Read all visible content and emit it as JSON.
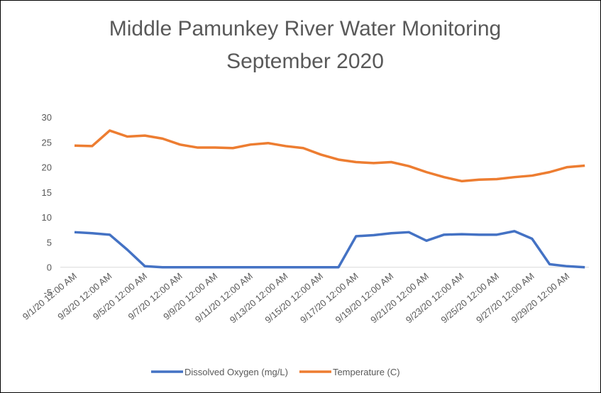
{
  "chart_data": {
    "type": "line",
    "title": [
      "Middle Pamunkey River Water Monitoring",
      "September 2020"
    ],
    "categories": [
      "9/1/20 12:00 AM",
      null,
      "9/3/20 12:00 AM",
      null,
      "9/5/20 12:00 AM",
      null,
      "9/7/20 12:00 AM",
      null,
      "9/9/20 12:00 AM",
      null,
      "9/11/20 12:00 AM",
      null,
      "9/13/20 12:00 AM",
      null,
      "9/15/20 12:00 AM",
      null,
      "9/17/20 12:00 AM",
      null,
      "9/19/20 12:00 AM",
      null,
      "9/21/20 12:00 AM",
      null,
      "9/23/20 12:00 AM",
      null,
      "9/25/20 12:00 AM",
      null,
      "9/27/20 12:00 AM",
      null,
      "9/29/20 12:00 AM",
      null
    ],
    "series": [
      {
        "name": "Dissolved Oxygen (mg/L)",
        "color": "#4472c4",
        "values": [
          7.0,
          6.8,
          6.5,
          3.5,
          0.2,
          0,
          0,
          0,
          0,
          0,
          0,
          0,
          0,
          0,
          0,
          0,
          6.2,
          6.4,
          6.8,
          7.0,
          5.3,
          6.5,
          6.6,
          6.5,
          6.5,
          7.2,
          5.7,
          0.6,
          0.2,
          0
        ]
      },
      {
        "name": "Temperature (C)",
        "color": "#ed7d31",
        "values": [
          24.3,
          24.2,
          27.3,
          26.1,
          26.3,
          25.7,
          24.5,
          23.9,
          23.9,
          23.8,
          24.5,
          24.8,
          24.2,
          23.8,
          22.5,
          21.5,
          21.0,
          20.8,
          21.0,
          20.2,
          19.0,
          18.0,
          17.2,
          17.5,
          17.6,
          18.0,
          18.3,
          19.0,
          20.0,
          20.3
        ]
      }
    ],
    "ylim": [
      -5,
      30
    ],
    "yticks": [
      -5,
      0,
      5,
      10,
      15,
      20,
      25,
      30
    ],
    "grid": false,
    "legend": "bottom"
  }
}
